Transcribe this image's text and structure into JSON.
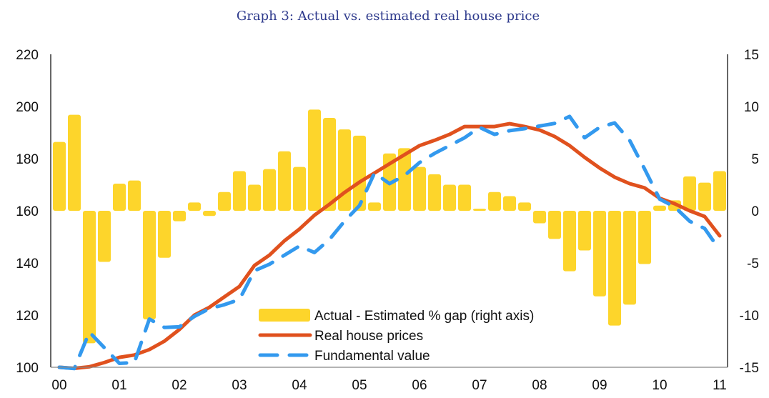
{
  "chart_data": {
    "type": "bar+line",
    "title": "Graph 3: Actual vs. estimated real house price",
    "xlabel": "",
    "ylabel": "",
    "x_tick_labels": [
      "00",
      "01",
      "02",
      "03",
      "04",
      "05",
      "06",
      "07",
      "08",
      "09",
      "10",
      "11"
    ],
    "x_frequency": "quarterly",
    "x_periods": 45,
    "left_axis": {
      "range": [
        100,
        220
      ],
      "ticks": [
        "100",
        "120",
        "140",
        "160",
        "180",
        "200",
        "220"
      ]
    },
    "right_axis": {
      "range": [
        -15,
        15
      ],
      "ticks": [
        "-15",
        "-10",
        "-5",
        "0",
        "5",
        "10",
        "15"
      ]
    },
    "grid": false,
    "legend_position": "bottom-center",
    "series": [
      {
        "name": "Actual - Estimated % gap (right axis)",
        "type": "bar",
        "axis": "right",
        "color": "#fdd52b",
        "values": [
          6.6,
          9.2,
          -12.7,
          -4.9,
          2.6,
          2.9,
          -10.4,
          -4.5,
          -1.0,
          0.8,
          -0.5,
          1.8,
          3.8,
          2.5,
          4.0,
          5.7,
          4.2,
          9.7,
          8.9,
          7.8,
          7.2,
          0.8,
          5.5,
          6.0,
          4.2,
          3.5,
          2.5,
          2.5,
          0.2,
          1.8,
          1.4,
          0.8,
          -1.2,
          -2.7,
          -5.8,
          -3.8,
          -8.2,
          -11.0,
          -9.0,
          -5.1,
          0.5,
          1.0,
          3.3,
          2.7,
          3.8
        ]
      },
      {
        "name": "Real house prices",
        "type": "line",
        "axis": "left",
        "color": "#e0511e",
        "values": [
          100,
          99.6,
          100.2,
          101.8,
          103.8,
          104.7,
          106.8,
          110,
          114.5,
          120,
          123,
          127,
          131,
          139,
          143,
          148.5,
          153,
          158.3,
          162.5,
          167,
          171,
          174.5,
          178,
          181.5,
          185,
          187,
          189.3,
          192.3,
          192.3,
          192.3,
          193.4,
          192.3,
          191,
          188.5,
          185,
          180.5,
          176.4,
          172.9,
          170.4,
          168.8,
          164.8,
          162.7,
          160,
          157.8,
          150.4
        ]
      },
      {
        "name": "Fundamental value",
        "type": "line-dashed",
        "axis": "left",
        "color": "#3399ee",
        "values": [
          100,
          99.5,
          113.5,
          107.5,
          101.5,
          101.8,
          118.5,
          115.3,
          115.5,
          119.5,
          122.5,
          124,
          126,
          137,
          139.5,
          143,
          146.5,
          144,
          149,
          156,
          162,
          174.5,
          170.4,
          173.5,
          178.5,
          182,
          185,
          188,
          192,
          189.3,
          190.7,
          191.5,
          192.5,
          193.5,
          196.2,
          188,
          192,
          193.7,
          187,
          176,
          164.5,
          161.5,
          156,
          153.2,
          145
        ]
      }
    ]
  }
}
